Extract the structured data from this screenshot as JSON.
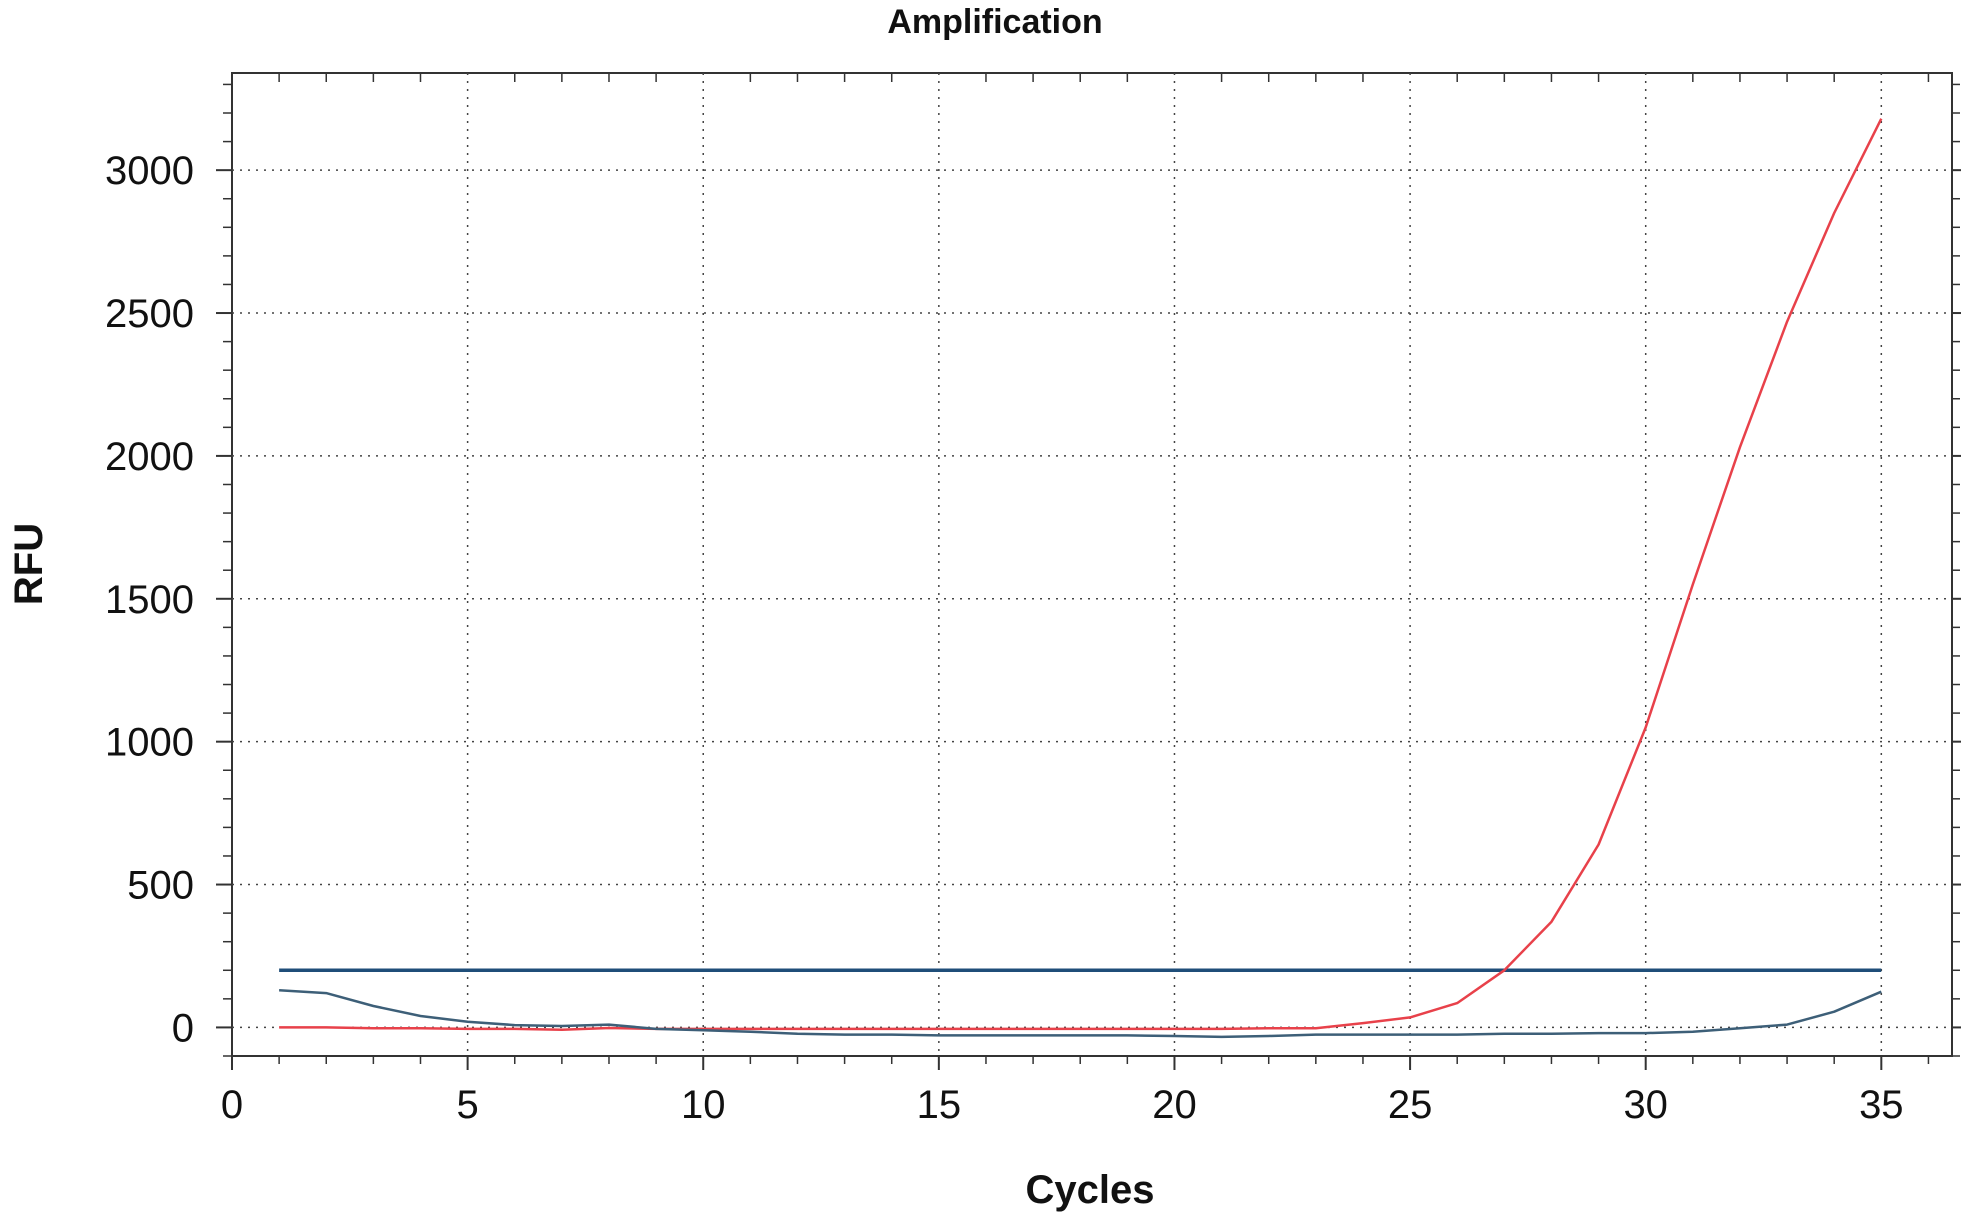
{
  "chart_data": {
    "type": "line",
    "title": "Amplification",
    "xlabel": "Cycles",
    "ylabel": "RFU",
    "xlim": [
      0,
      36.5
    ],
    "ylim": [
      -100,
      3340
    ],
    "x_ticks": [
      0,
      5,
      10,
      15,
      20,
      25,
      30,
      35
    ],
    "y_ticks": [
      0,
      500,
      1000,
      1500,
      2000,
      2500,
      3000
    ],
    "grid": true,
    "legend": "none",
    "threshold": {
      "value": 200,
      "x_range": [
        1,
        35
      ],
      "color": "#1f4e79"
    },
    "x": [
      1,
      2,
      3,
      4,
      5,
      6,
      7,
      8,
      9,
      10,
      11,
      12,
      13,
      14,
      15,
      16,
      17,
      18,
      19,
      20,
      21,
      22,
      23,
      24,
      25,
      26,
      27,
      28,
      29,
      30,
      31,
      32,
      33,
      34,
      35
    ],
    "series": [
      {
        "color": "#e8414a",
        "values": [
          0,
          0,
          -3,
          -3,
          -5,
          -5,
          -8,
          -2,
          -5,
          -5,
          -5,
          -5,
          -5,
          -5,
          -5,
          -5,
          -5,
          -5,
          -5,
          -5,
          -5,
          -3,
          -3,
          15,
          35,
          85,
          200,
          370,
          640,
          1050,
          1550,
          2030,
          2470,
          2850,
          3180
        ]
      },
      {
        "color": "#3d5f78",
        "values": [
          130,
          120,
          75,
          40,
          20,
          8,
          5,
          10,
          -5,
          -10,
          -15,
          -22,
          -25,
          -25,
          -28,
          -28,
          -28,
          -28,
          -28,
          -30,
          -33,
          -30,
          -25,
          -25,
          -25,
          -25,
          -22,
          -22,
          -20,
          -20,
          -15,
          -3,
          10,
          55,
          125
        ]
      }
    ]
  }
}
